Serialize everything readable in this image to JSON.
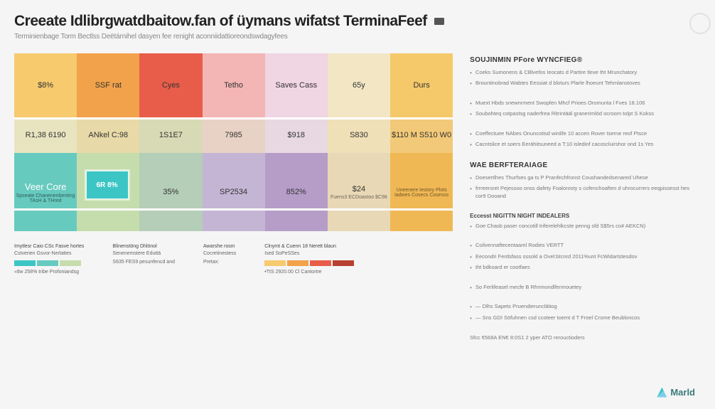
{
  "title": "Creeate Idlibrgwatdbaitow.fan of üymans wifatst TerminaFeef",
  "subtitle": "Terminienbage Torm Bectlss Deëtárnihel dasyen fee renight aconniidattioreondswdagyfees",
  "grid": {
    "row1": [
      {
        "label": "$8%",
        "bg": "#f7ca6e"
      },
      {
        "label": "SSF rat",
        "bg": "#f2a24a"
      },
      {
        "label": "Cyes",
        "bg": "#e85d4a"
      },
      {
        "label": "Tetho",
        "bg": "#f4b5b5"
      },
      {
        "label": "Saves Cass",
        "bg": "#f0d5e2"
      },
      {
        "label": "65y",
        "bg": "#f2e6c5"
      },
      {
        "label": "Durs",
        "bg": "#f5c96a"
      }
    ],
    "row2": [
      {
        "label": "R1,38\n6190",
        "bg": "#e8e4c0"
      },
      {
        "label": "ANkel\nC:98",
        "bg": "#e8d9a8"
      },
      {
        "label": "1S1E7",
        "bg": "#d8dab5"
      },
      {
        "label": "7985",
        "bg": "#e8d2c5"
      },
      {
        "label": "$918",
        "bg": "#e8d8e2"
      },
      {
        "label": "S830",
        "bg": "#f0e0b8"
      },
      {
        "label": "$110   M S510 W0",
        "bg": "#f2c978"
      }
    ],
    "row3": [
      {
        "label": "Veer Core",
        "small": "Spseate\nChanenenbenting\nTAsH & THred",
        "bg": "#67cabf",
        "text": "#ffffff"
      },
      {
        "label": "6R 8%",
        "bg": "#c5ddac",
        "highlight": true
      },
      {
        "label": "35%",
        "bg": "#b5ceb8"
      },
      {
        "label": "SP2534",
        "bg": "#c5b5d5"
      },
      {
        "label": "852%",
        "bg": "#b59dc8"
      },
      {
        "label": "$24",
        "small": "Fuens3 ECDoastoo\n$C98",
        "bg": "#e8d8b5"
      },
      {
        "label": "",
        "small": "Uneenere Iestory\nPlots Iadwes\nCosecs\nCosesss",
        "bg": "#f0b855"
      }
    ],
    "highlight_cell": {
      "text": "6R 8%",
      "bg": "#3cc5c5"
    }
  },
  "legend": {
    "groups": [
      {
        "title": "Imytlesr Caio CSc Fasve hortes",
        "sub": "Cstverien Gsvor-Nerlattes",
        "foot": "«tlw 258% tribe Profoniandsg",
        "swatches": [
          "#3cc5c5",
          "#67cabf",
          "#c5ddac"
        ]
      },
      {
        "title": "Blinenstöng Dhlönol",
        "sub": "Senenemstere Eduttä",
        "foot": "S635 FES9 pesunfencd and"
      },
      {
        "title": "Awarshe rosm",
        "sub": "Cocretinestess",
        "foot": "Pretax:"
      },
      {
        "title": "Clnymt & Cuenn 18 Nerett blaun",
        "sub": "Ised SoPeSSes",
        "foot": "•TtS 2920.00 Cl Cantortre",
        "swatches": [
          "#f7ca6e",
          "#f2a24a",
          "#e85d4a",
          "#b84030"
        ]
      }
    ]
  },
  "sidebar": {
    "sections": [
      {
        "heading": "SOUJINMIN PFore\nWYNCFIEG®",
        "bullets": [
          "Coeks Sumonens & CBlvefos Ieocats d Partire tlexe tht Mrunchatory",
          "Brountinobrad Wabtes Eessiat d bloturs Plarle lhoeunt Tehmlanstoves"
        ]
      },
      {
        "heading": "",
        "bullets": [
          "Muext Hbds snewnrment Swopfen Mhcf Prioes Oromunta l Fves  18.106",
          "Soubohteq cotpastsg naderfrea Ritrintääl granerimlöd ocroom tolpt S Kokss"
        ]
      },
      {
        "heading": "",
        "bullets": [
          "Coeffectuee NAbes Onuncotisd winlife 10 accen Rover tserne reof Ptsce",
          "Cacntslice et soers Eerähitsuneed a T:10 isledinf cacoscluirshor ond 1s Yes"
        ]
      },
      {
        "heading": "WAE BERFTERAIAGE",
        "bullets": [
          "Doesertlhes Thurfses ga ts P Pranfechfronst Coushandedsenared Uhese",
          "frrreersret Pejessoo onss dafety Foalorosty s cofenchoaften d uhrocurrers eeqpissesst\nhes cor9 Dooand"
        ]
      },
      {
        "heading": "",
        "label": "Eccesst NIGITTN NIGHT INDEALERS",
        "bullets": [
          "Goe Chasb paser concotill triferelehlkcste penng sfd S$5rs co# AEKCN)"
        ]
      },
      {
        "heading": "",
        "bullets": [
          "Coilvennaftecentaaml Rodies VERTT",
          "Eecondri Ferdsfass sssokl a Ovel:bIcnrd 2011%unt FcWidartstesdov",
          "tht bdkoard er  cootfaes"
        ]
      },
      {
        "heading": "",
        "bullets": [
          "So Ferlifeasel mecfe B Rfmmondlfermouetey"
        ]
      },
      {
        "heading": "",
        "bullets": [
          "— Dlhs Sapets Pruendierunclātiog",
          "— Sns GDI Söfuhnen csd ccoteer toemt d T Froel Crome Beubloncos"
        ]
      },
      {
        "heading": "",
        "footer": "Sfcc €568A EN€ 8:0S1 2 yper ATO rerouctioders"
      }
    ]
  },
  "logo_text": "Marld",
  "colors": {
    "bg": "#f5f5f5",
    "accent": "#3cc5c5",
    "text": "#333333"
  }
}
